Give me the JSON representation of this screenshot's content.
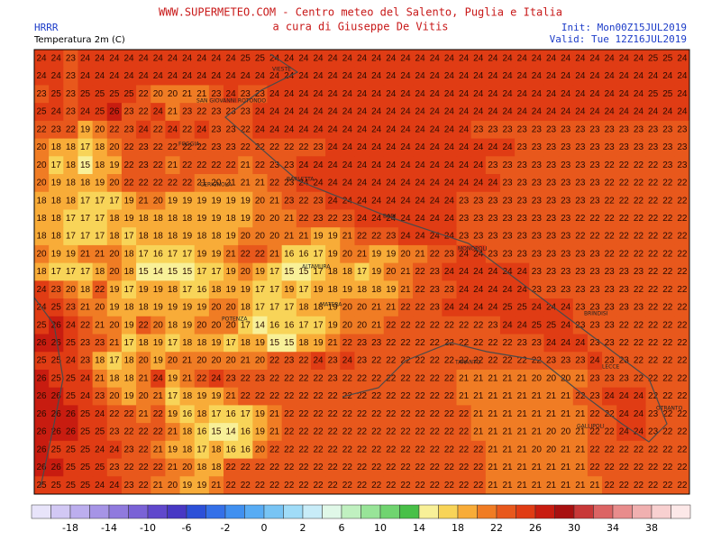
{
  "header": {
    "title": "WWW.SUPERMETEO.COM - Centro meteo del Salento, Puglia e Italia",
    "subtitle": "a cura di Giuseppe De Vitis",
    "model": "HRRR",
    "field": "Temperatura 2m (C)",
    "init": "Init: Mon00Z15JUL2019",
    "valid": "Valid: Tue 12Z16JUL2019"
  },
  "cities": [
    "VIESTE",
    "SAN GIOVANNI ROTONDO",
    "FOGGIA",
    "CERIGNOLA",
    "BARLETTA",
    "BARI",
    "MONOPOLI",
    "ALTAMURA",
    "MATERA",
    "POTENZA",
    "TARANTO",
    "BRINDISI",
    "LECCE",
    "GALLIPOLI",
    "OTRANTO"
  ],
  "grid": [
    [
      24,
      24,
      23,
      24,
      24,
      24,
      24,
      24,
      24,
      24,
      24,
      24,
      24,
      24,
      25,
      25,
      24,
      24,
      24,
      24,
      24,
      24,
      24,
      24,
      24,
      24,
      24,
      24,
      24,
      24,
      24,
      24,
      24,
      24,
      24,
      24,
      24,
      24,
      24,
      24,
      24,
      24,
      25,
      25,
      24
    ],
    [
      24,
      24,
      23,
      24,
      24,
      24,
      24,
      24,
      24,
      24,
      24,
      24,
      24,
      24,
      24,
      24,
      24,
      24,
      24,
      24,
      24,
      24,
      24,
      24,
      24,
      24,
      24,
      24,
      24,
      24,
      24,
      24,
      24,
      24,
      24,
      24,
      24,
      24,
      24,
      24,
      24,
      24,
      24,
      24,
      24
    ],
    [
      23,
      25,
      23,
      25,
      25,
      25,
      25,
      22,
      20,
      20,
      21,
      21,
      23,
      24,
      23,
      23,
      24,
      24,
      24,
      24,
      24,
      24,
      24,
      24,
      24,
      24,
      24,
      24,
      24,
      24,
      24,
      24,
      24,
      24,
      24,
      24,
      24,
      24,
      24,
      24,
      24,
      24,
      25,
      25,
      24
    ],
    [
      25,
      24,
      23,
      24,
      25,
      26,
      23,
      22,
      24,
      21,
      23,
      22,
      23,
      23,
      23,
      24,
      24,
      24,
      24,
      24,
      24,
      24,
      24,
      24,
      24,
      24,
      24,
      24,
      24,
      24,
      24,
      24,
      24,
      24,
      24,
      24,
      24,
      24,
      24,
      24,
      24,
      24,
      24,
      24,
      24
    ],
    [
      22,
      23,
      22,
      19,
      20,
      22,
      23,
      24,
      22,
      24,
      22,
      24,
      23,
      23,
      22,
      24,
      24,
      24,
      24,
      24,
      24,
      24,
      24,
      24,
      24,
      24,
      24,
      24,
      24,
      24,
      23,
      23,
      23,
      23,
      23,
      23,
      23,
      23,
      23,
      23,
      23,
      23,
      23,
      23,
      23
    ],
    [
      20,
      18,
      18,
      17,
      18,
      20,
      22,
      23,
      22,
      22,
      22,
      22,
      23,
      23,
      22,
      22,
      22,
      22,
      22,
      23,
      24,
      24,
      24,
      24,
      24,
      24,
      24,
      24,
      24,
      24,
      24,
      24,
      24,
      23,
      23,
      23,
      23,
      23,
      23,
      23,
      23,
      23,
      23,
      23,
      23
    ],
    [
      20,
      17,
      18,
      15,
      18,
      19,
      22,
      23,
      22,
      21,
      22,
      22,
      22,
      22,
      21,
      22,
      23,
      23,
      24,
      24,
      24,
      24,
      24,
      24,
      24,
      24,
      24,
      24,
      24,
      24,
      24,
      23,
      23,
      23,
      23,
      23,
      23,
      23,
      23,
      22,
      22,
      22,
      22,
      23,
      23
    ],
    [
      20,
      19,
      18,
      18,
      19,
      20,
      22,
      22,
      22,
      22,
      22,
      21,
      20,
      21,
      21,
      21,
      22,
      23,
      24,
      24,
      24,
      24,
      24,
      24,
      24,
      24,
      24,
      24,
      24,
      24,
      24,
      24,
      23,
      23,
      23,
      23,
      23,
      23,
      23,
      22,
      22,
      22,
      22,
      22,
      22
    ],
    [
      18,
      18,
      18,
      17,
      17,
      17,
      19,
      21,
      20,
      19,
      19,
      19,
      19,
      19,
      19,
      20,
      21,
      23,
      22,
      23,
      24,
      24,
      24,
      24,
      24,
      24,
      24,
      24,
      24,
      23,
      23,
      23,
      23,
      23,
      23,
      23,
      23,
      23,
      23,
      22,
      22,
      22,
      22,
      22,
      22
    ],
    [
      18,
      18,
      17,
      17,
      17,
      18,
      19,
      18,
      18,
      18,
      18,
      19,
      19,
      18,
      19,
      20,
      20,
      21,
      22,
      23,
      22,
      23,
      24,
      24,
      24,
      24,
      24,
      24,
      24,
      23,
      23,
      23,
      23,
      23,
      23,
      23,
      23,
      22,
      22,
      22,
      22,
      22,
      22,
      22,
      22
    ],
    [
      18,
      18,
      17,
      17,
      17,
      18,
      17,
      18,
      18,
      18,
      19,
      18,
      18,
      19,
      20,
      20,
      20,
      21,
      21,
      19,
      19,
      21,
      22,
      22,
      23,
      24,
      24,
      24,
      24,
      23,
      23,
      23,
      23,
      23,
      23,
      23,
      23,
      22,
      22,
      22,
      22,
      22,
      22,
      22,
      22
    ],
    [
      20,
      19,
      19,
      21,
      21,
      20,
      18,
      17,
      16,
      17,
      17,
      19,
      19,
      21,
      22,
      22,
      21,
      16,
      16,
      17,
      19,
      20,
      21,
      19,
      19,
      20,
      21,
      22,
      23,
      24,
      24,
      23,
      23,
      23,
      23,
      23,
      23,
      23,
      23,
      22,
      22,
      22,
      22,
      22,
      22
    ],
    [
      18,
      17,
      17,
      17,
      18,
      20,
      18,
      15,
      14,
      15,
      15,
      17,
      17,
      19,
      20,
      19,
      17,
      15,
      15,
      17,
      18,
      18,
      17,
      19,
      20,
      21,
      22,
      23,
      24,
      24,
      24,
      24,
      24,
      24,
      23,
      23,
      23,
      23,
      23,
      23,
      23,
      23,
      22,
      22,
      22
    ],
    [
      24,
      23,
      20,
      18,
      22,
      19,
      17,
      19,
      19,
      18,
      17,
      16,
      18,
      19,
      19,
      17,
      17,
      19,
      17,
      19,
      18,
      19,
      18,
      18,
      19,
      21,
      22,
      23,
      23,
      24,
      24,
      24,
      24,
      24,
      23,
      23,
      23,
      23,
      23,
      23,
      23,
      22,
      22,
      22,
      22
    ],
    [
      24,
      25,
      23,
      21,
      20,
      19,
      18,
      18,
      19,
      19,
      19,
      19,
      20,
      20,
      18,
      17,
      17,
      17,
      18,
      18,
      19,
      20,
      20,
      21,
      21,
      22,
      22,
      23,
      24,
      24,
      24,
      24,
      25,
      25,
      24,
      24,
      24,
      23,
      23,
      23,
      23,
      23,
      22,
      22,
      22
    ],
    [
      25,
      26,
      24,
      22,
      21,
      20,
      19,
      22,
      20,
      18,
      19,
      20,
      20,
      20,
      17,
      14,
      16,
      16,
      17,
      17,
      19,
      20,
      20,
      21,
      22,
      22,
      22,
      22,
      22,
      22,
      22,
      23,
      24,
      24,
      25,
      25,
      24,
      23,
      23,
      23,
      22,
      22,
      22,
      22,
      22
    ],
    [
      26,
      26,
      25,
      23,
      23,
      21,
      17,
      18,
      19,
      17,
      18,
      18,
      19,
      17,
      18,
      19,
      15,
      15,
      18,
      19,
      21,
      22,
      23,
      23,
      22,
      22,
      22,
      22,
      22,
      22,
      22,
      22,
      22,
      23,
      23,
      24,
      24,
      24,
      23,
      23,
      22,
      22,
      22,
      22,
      22
    ],
    [
      25,
      25,
      24,
      23,
      18,
      17,
      18,
      20,
      19,
      20,
      21,
      20,
      20,
      20,
      21,
      20,
      22,
      23,
      22,
      24,
      23,
      24,
      23,
      22,
      22,
      22,
      22,
      22,
      22,
      22,
      22,
      22,
      22,
      22,
      22,
      23,
      23,
      23,
      24,
      23,
      23,
      22,
      22,
      22,
      22
    ],
    [
      26,
      25,
      25,
      24,
      21,
      18,
      18,
      21,
      24,
      19,
      21,
      22,
      24,
      23,
      22,
      23,
      22,
      22,
      22,
      22,
      23,
      22,
      22,
      22,
      22,
      22,
      22,
      22,
      22,
      21,
      21,
      21,
      21,
      21,
      20,
      20,
      20,
      21,
      23,
      23,
      23,
      22,
      22,
      22,
      22
    ],
    [
      26,
      26,
      25,
      24,
      23,
      20,
      19,
      20,
      21,
      17,
      18,
      19,
      19,
      21,
      22,
      22,
      22,
      22,
      22,
      22,
      22,
      22,
      22,
      22,
      22,
      22,
      22,
      22,
      22,
      21,
      21,
      21,
      21,
      21,
      21,
      21,
      21,
      22,
      23,
      24,
      24,
      24,
      22,
      22,
      22
    ],
    [
      26,
      26,
      26,
      25,
      24,
      22,
      22,
      21,
      22,
      19,
      16,
      18,
      17,
      16,
      17,
      19,
      21,
      22,
      22,
      22,
      22,
      22,
      22,
      22,
      22,
      22,
      22,
      22,
      22,
      22,
      21,
      21,
      21,
      21,
      21,
      21,
      21,
      21,
      22,
      22,
      24,
      24,
      23,
      22,
      22
    ],
    [
      26,
      26,
      26,
      25,
      25,
      23,
      22,
      22,
      22,
      21,
      18,
      16,
      15,
      14,
      16,
      19,
      21,
      22,
      22,
      22,
      22,
      22,
      22,
      22,
      22,
      22,
      22,
      22,
      22,
      22,
      21,
      21,
      21,
      21,
      21,
      20,
      20,
      21,
      22,
      22,
      24,
      24,
      23,
      22,
      22
    ],
    [
      26,
      25,
      25,
      25,
      24,
      24,
      23,
      22,
      21,
      19,
      18,
      17,
      18,
      16,
      16,
      20,
      22,
      22,
      22,
      22,
      22,
      22,
      22,
      22,
      22,
      22,
      22,
      22,
      22,
      22,
      22,
      21,
      21,
      21,
      20,
      20,
      21,
      21,
      22,
      22,
      22,
      22,
      22,
      22,
      22
    ],
    [
      26,
      26,
      25,
      25,
      25,
      23,
      22,
      22,
      22,
      21,
      20,
      18,
      18,
      22,
      22,
      22,
      22,
      22,
      22,
      22,
      22,
      22,
      22,
      22,
      22,
      22,
      22,
      22,
      22,
      22,
      22,
      21,
      21,
      21,
      21,
      21,
      21,
      21,
      22,
      22,
      22,
      22,
      22,
      22,
      22
    ],
    [
      25,
      25,
      25,
      25,
      24,
      24,
      23,
      22,
      21,
      20,
      19,
      19,
      21,
      22,
      22,
      22,
      22,
      22,
      22,
      22,
      22,
      22,
      22,
      22,
      22,
      22,
      22,
      22,
      22,
      22,
      22,
      21,
      21,
      21,
      21,
      21,
      21,
      21,
      21,
      22,
      22,
      22,
      22,
      22,
      22
    ]
  ],
  "colorbar": {
    "colors": [
      "#e8e4fa",
      "#d2c8f4",
      "#bcaeee",
      "#a694e6",
      "#907ade",
      "#7a62d6",
      "#6048cc",
      "#4838c4",
      "#2c50d8",
      "#3470e8",
      "#4090f0",
      "#58acf4",
      "#78c4f4",
      "#a0dcf8",
      "#c8ecf8",
      "#e0f8e8",
      "#c0f0c0",
      "#98e498",
      "#70d470",
      "#48c048",
      "#f8f098",
      "#f8d458",
      "#f8ac38",
      "#f07c24",
      "#e8581c",
      "#e03c14",
      "#c81c10",
      "#a81010",
      "#c83838",
      "#dc6464",
      "#e88c8c",
      "#f0b0b0",
      "#f8d0d0",
      "#fce8e8"
    ],
    "labels": [
      -18,
      -14,
      -10,
      -6,
      -2,
      0,
      2,
      6,
      10,
      14,
      18,
      22,
      26,
      30,
      34,
      38
    ]
  }
}
